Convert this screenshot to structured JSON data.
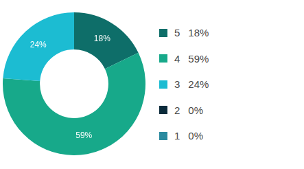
{
  "chart_data": {
    "type": "doughnut",
    "categories": [
      "5",
      "4",
      "3",
      "2",
      "1"
    ],
    "values": [
      18,
      59,
      24,
      0,
      0
    ],
    "value_labels": [
      "18%",
      "59%",
      "24%",
      "0%",
      "0%"
    ],
    "colors": [
      "#0e6e69",
      "#17a98a",
      "#1cbcd2",
      "#0b2b3b",
      "#2a8a9f"
    ],
    "legend": "right",
    "data_labels": true
  }
}
